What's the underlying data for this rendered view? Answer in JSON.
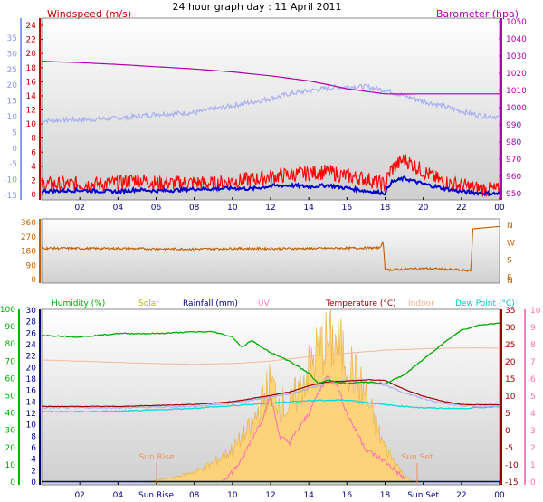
{
  "title": "24 hour graph day : 11 April 2011",
  "panels": {
    "wind": {
      "left_label": "Windspeed (m/s)",
      "right_label": "Barometer (hpa)",
      "colors": {
        "windspeed": "#c00000",
        "barometer": "#b000b0",
        "gust": "#ff0000",
        "avg": "#0000cc",
        "temp": "#a0a8f0"
      }
    },
    "direction": {
      "compass": [
        "N",
        "W",
        "S",
        "E",
        "N"
      ],
      "color": "#c06000"
    },
    "climate": {
      "legend": [
        {
          "label": "Humidity (%)",
          "color": "#00aa00"
        },
        {
          "label": "Solar",
          "color": "#b8b800"
        },
        {
          "label": "Rainfall (mm)",
          "color": "#000080"
        },
        {
          "label": "UV",
          "color": "#ff80c0"
        },
        {
          "label": "Temperature (°C)",
          "color": "#a00000"
        },
        {
          "label": "Indoor",
          "color": "#f0b090"
        },
        {
          "label": "Dew Point (°C)",
          "color": "#00c8c8"
        }
      ],
      "annotations": {
        "sun_rise": "Sun Rise",
        "sun_set": "Sun Set"
      }
    }
  },
  "chart_data": [
    {
      "type": "line",
      "title": "",
      "x_ticks": [
        "02",
        "04",
        "06",
        "08",
        "10",
        "12",
        "14",
        "16",
        "18",
        "20",
        "22",
        "00"
      ],
      "x_range": [
        0,
        24
      ],
      "left_axis": {
        "label": "Windspeed (m/s)",
        "ticks": [
          0,
          2,
          4,
          6,
          8,
          10,
          12,
          14,
          16,
          18,
          20,
          22,
          24
        ],
        "range": [
          0,
          25
        ]
      },
      "right_axis": {
        "label": "Barometer (hpa)",
        "ticks": [
          950,
          960,
          970,
          980,
          990,
          1000,
          1010,
          1020,
          1030,
          1040,
          1050
        ],
        "range": [
          948,
          1052
        ]
      },
      "outer_left_axis": {
        "ticks": [
          35,
          30,
          25,
          20,
          15,
          10,
          5,
          0,
          -5,
          -10,
          -15
        ]
      },
      "series": [
        {
          "name": "Barometer (hpa)",
          "axis": "right",
          "x": [
            0,
            2,
            4,
            6,
            8,
            10,
            12,
            14,
            15,
            16,
            17,
            18,
            19,
            20,
            22,
            24
          ],
          "y": [
            1027,
            1026.2,
            1025.1,
            1023.8,
            1022.5,
            1020.8,
            1018.5,
            1015.6,
            1013.4,
            1011.0,
            1009.5,
            1008.0,
            1007.9,
            1008.0,
            1008.0,
            1008.0
          ]
        },
        {
          "name": "",
          "axis": "left",
          "x": [
            0,
            2,
            4,
            6,
            8,
            10,
            12,
            13,
            14,
            15,
            16,
            17,
            18,
            19,
            20,
            21,
            22,
            23,
            24
          ],
          "y": [
            10.5,
            10.6,
            10.8,
            11.4,
            11.6,
            12.6,
            13.6,
            14.3,
            14.7,
            15.1,
            15.3,
            15.3,
            14.8,
            14.0,
            13.2,
            12.6,
            11.8,
            11.2,
            11.0
          ]
        },
        {
          "name": "",
          "axis": "left",
          "x": [
            0,
            1,
            2,
            3,
            4,
            5,
            6,
            7,
            8,
            9,
            10,
            11,
            12,
            13,
            14,
            15,
            16,
            17,
            18,
            18.3,
            19,
            20,
            21,
            22,
            23,
            24
          ],
          "y": [
            1.5,
            1.4,
            1.5,
            1.5,
            1.6,
            2.2,
            1.6,
            1.6,
            1.7,
            1.5,
            1.9,
            2.1,
            2.5,
            2.8,
            3.0,
            3.2,
            2.6,
            2.2,
            1.4,
            3.5,
            5.0,
            3.3,
            1.8,
            1.3,
            0.8,
            0.6
          ]
        },
        {
          "name": "",
          "axis": "left",
          "x": [
            0,
            1,
            2,
            3,
            4,
            5,
            6,
            7,
            8,
            9,
            10,
            11,
            12,
            13,
            14,
            15,
            16,
            17,
            18,
            18.3,
            19,
            20,
            21,
            22,
            23,
            24
          ],
          "y": [
            0.5,
            0.5,
            0.6,
            0.5,
            0.4,
            0.7,
            0.5,
            0.6,
            0.8,
            0.8,
            0.9,
            0.8,
            1.2,
            1.3,
            1.1,
            1.3,
            0.9,
            0.5,
            0.2,
            1.7,
            2.3,
            1.5,
            0.9,
            0.4,
            0.2,
            0.1
          ]
        }
      ]
    },
    {
      "type": "line",
      "title": "",
      "left_axis": {
        "ticks": [
          0,
          90,
          180,
          270,
          360
        ],
        "range": [
          0,
          360
        ]
      },
      "right_axis": {
        "ticks": [
          "N",
          "W",
          "S",
          "E",
          "N"
        ]
      },
      "x_range": [
        0,
        24
      ],
      "series": [
        {
          "name": "",
          "x": [
            0,
            2,
            4,
            6,
            8,
            10,
            12,
            14,
            16,
            17.7,
            17.9,
            18,
            19,
            20,
            21,
            22.5,
            22.6,
            24
          ],
          "y": [
            198,
            196,
            196,
            194,
            192,
            196,
            195,
            196,
            198,
            200,
            240,
            60,
            65,
            70,
            66,
            55,
            320,
            335
          ]
        }
      ]
    },
    {
      "type": "line",
      "title": "",
      "x_ticks": [
        "02",
        "04",
        "Sun Rise",
        "08",
        "10",
        "12",
        "14",
        "16",
        "18",
        "Sun Set",
        "22",
        "00"
      ],
      "x_range": [
        0,
        24
      ],
      "axes": {
        "humidity": [
          0,
          10,
          20,
          30,
          40,
          50,
          60,
          70,
          80,
          90,
          100
        ],
        "rainfall": [
          0,
          2,
          4,
          6,
          8,
          10,
          12,
          14,
          16,
          18,
          20,
          22,
          24,
          26,
          28,
          30
        ],
        "temperature": [
          -15,
          -10,
          -5,
          0,
          5,
          10,
          15,
          20,
          25,
          30,
          35
        ],
        "uv": [
          0,
          1,
          2,
          3,
          4,
          5,
          6,
          7,
          8,
          9,
          10
        ]
      },
      "series": [
        {
          "name": "Humidity (%)",
          "axis": "humidity",
          "x": [
            0,
            2,
            4,
            6,
            8,
            9,
            10,
            10.5,
            11,
            12,
            13,
            14,
            14.5,
            15,
            16,
            17,
            18,
            19,
            20,
            21,
            22,
            23,
            24
          ],
          "y": [
            85,
            84,
            86,
            86,
            87,
            87,
            84,
            78,
            82,
            75,
            70,
            63,
            57,
            59,
            57,
            58,
            57,
            62,
            71,
            80,
            88,
            91,
            92
          ]
        },
        {
          "name": "Indoor",
          "axis": "temperature",
          "x": [
            0,
            2,
            4,
            6,
            8,
            10,
            12,
            14,
            16,
            18,
            20,
            22,
            24
          ],
          "y": [
            20.5,
            20.2,
            19.8,
            19.5,
            19.3,
            19.5,
            20.2,
            21.5,
            22.5,
            23.4,
            23.8,
            24.0,
            24.0
          ]
        },
        {
          "name": "Temperature (°C)",
          "axis": "temperature",
          "x": [
            0,
            2,
            4,
            6,
            8,
            10,
            12,
            13,
            14,
            15,
            16,
            17,
            18,
            19,
            20,
            21,
            22,
            23,
            24
          ],
          "y": [
            7.0,
            7.0,
            7.0,
            7.3,
            7.6,
            8.4,
            10.2,
            11.2,
            13.0,
            14.2,
            14.4,
            14.8,
            14.6,
            12.0,
            10.0,
            8.6,
            7.6,
            7.5,
            7.5
          ]
        },
        {
          "name": "",
          "axis": "temperature",
          "x": [
            0,
            2,
            4,
            6,
            8,
            10,
            12,
            13,
            14,
            15,
            16,
            17,
            18,
            19,
            20,
            21,
            22,
            23,
            24
          ],
          "y": [
            6.5,
            6.7,
            6.6,
            6.8,
            7.1,
            8.0,
            9.8,
            10.6,
            12.2,
            13.8,
            14.6,
            14.0,
            13.2,
            11.0,
            9.3,
            8.0,
            7.2,
            7.0,
            7.0
          ]
        },
        {
          "name": "Dew Point (°C)",
          "axis": "temperature",
          "x": [
            0,
            2,
            4,
            6,
            8,
            10,
            12,
            14,
            16,
            18,
            20,
            22,
            24
          ],
          "y": [
            5.5,
            5.5,
            5.6,
            6.0,
            6.5,
            7.2,
            8.0,
            8.7,
            8.9,
            7.5,
            6.6,
            6.4,
            7.0
          ]
        },
        {
          "name": "Solar",
          "axis": "uv",
          "x": [
            5.5,
            7,
            8,
            9,
            10,
            11,
            11.5,
            12,
            12.5,
            13,
            14,
            14.5,
            15,
            15.5,
            16,
            16.5,
            17,
            17.5,
            18,
            19,
            19.5
          ],
          "y": [
            0,
            0.3,
            0.6,
            1.1,
            1.9,
            3.2,
            4.5,
            5.8,
            4.6,
            4.3,
            6.5,
            7.7,
            8.2,
            8.0,
            7.2,
            6.0,
            5.0,
            3.3,
            2.0,
            0.4,
            0
          ]
        },
        {
          "name": "UV",
          "axis": "uv",
          "x": [
            9.5,
            10,
            10.5,
            11,
            11.5,
            12,
            12.5,
            13,
            14,
            14.5,
            15,
            15.5,
            16,
            17,
            18,
            19
          ],
          "y": [
            0.1,
            0.6,
            1.3,
            2.5,
            3.5,
            5.0,
            2.6,
            2.3,
            4.0,
            5.2,
            6.2,
            5.6,
            4.0,
            1.9,
            1.2,
            0.2
          ]
        },
        {
          "name": "Rainfall (mm)",
          "axis": "rainfall",
          "x": [
            0,
            24
          ],
          "y": [
            0,
            0
          ]
        }
      ]
    }
  ]
}
